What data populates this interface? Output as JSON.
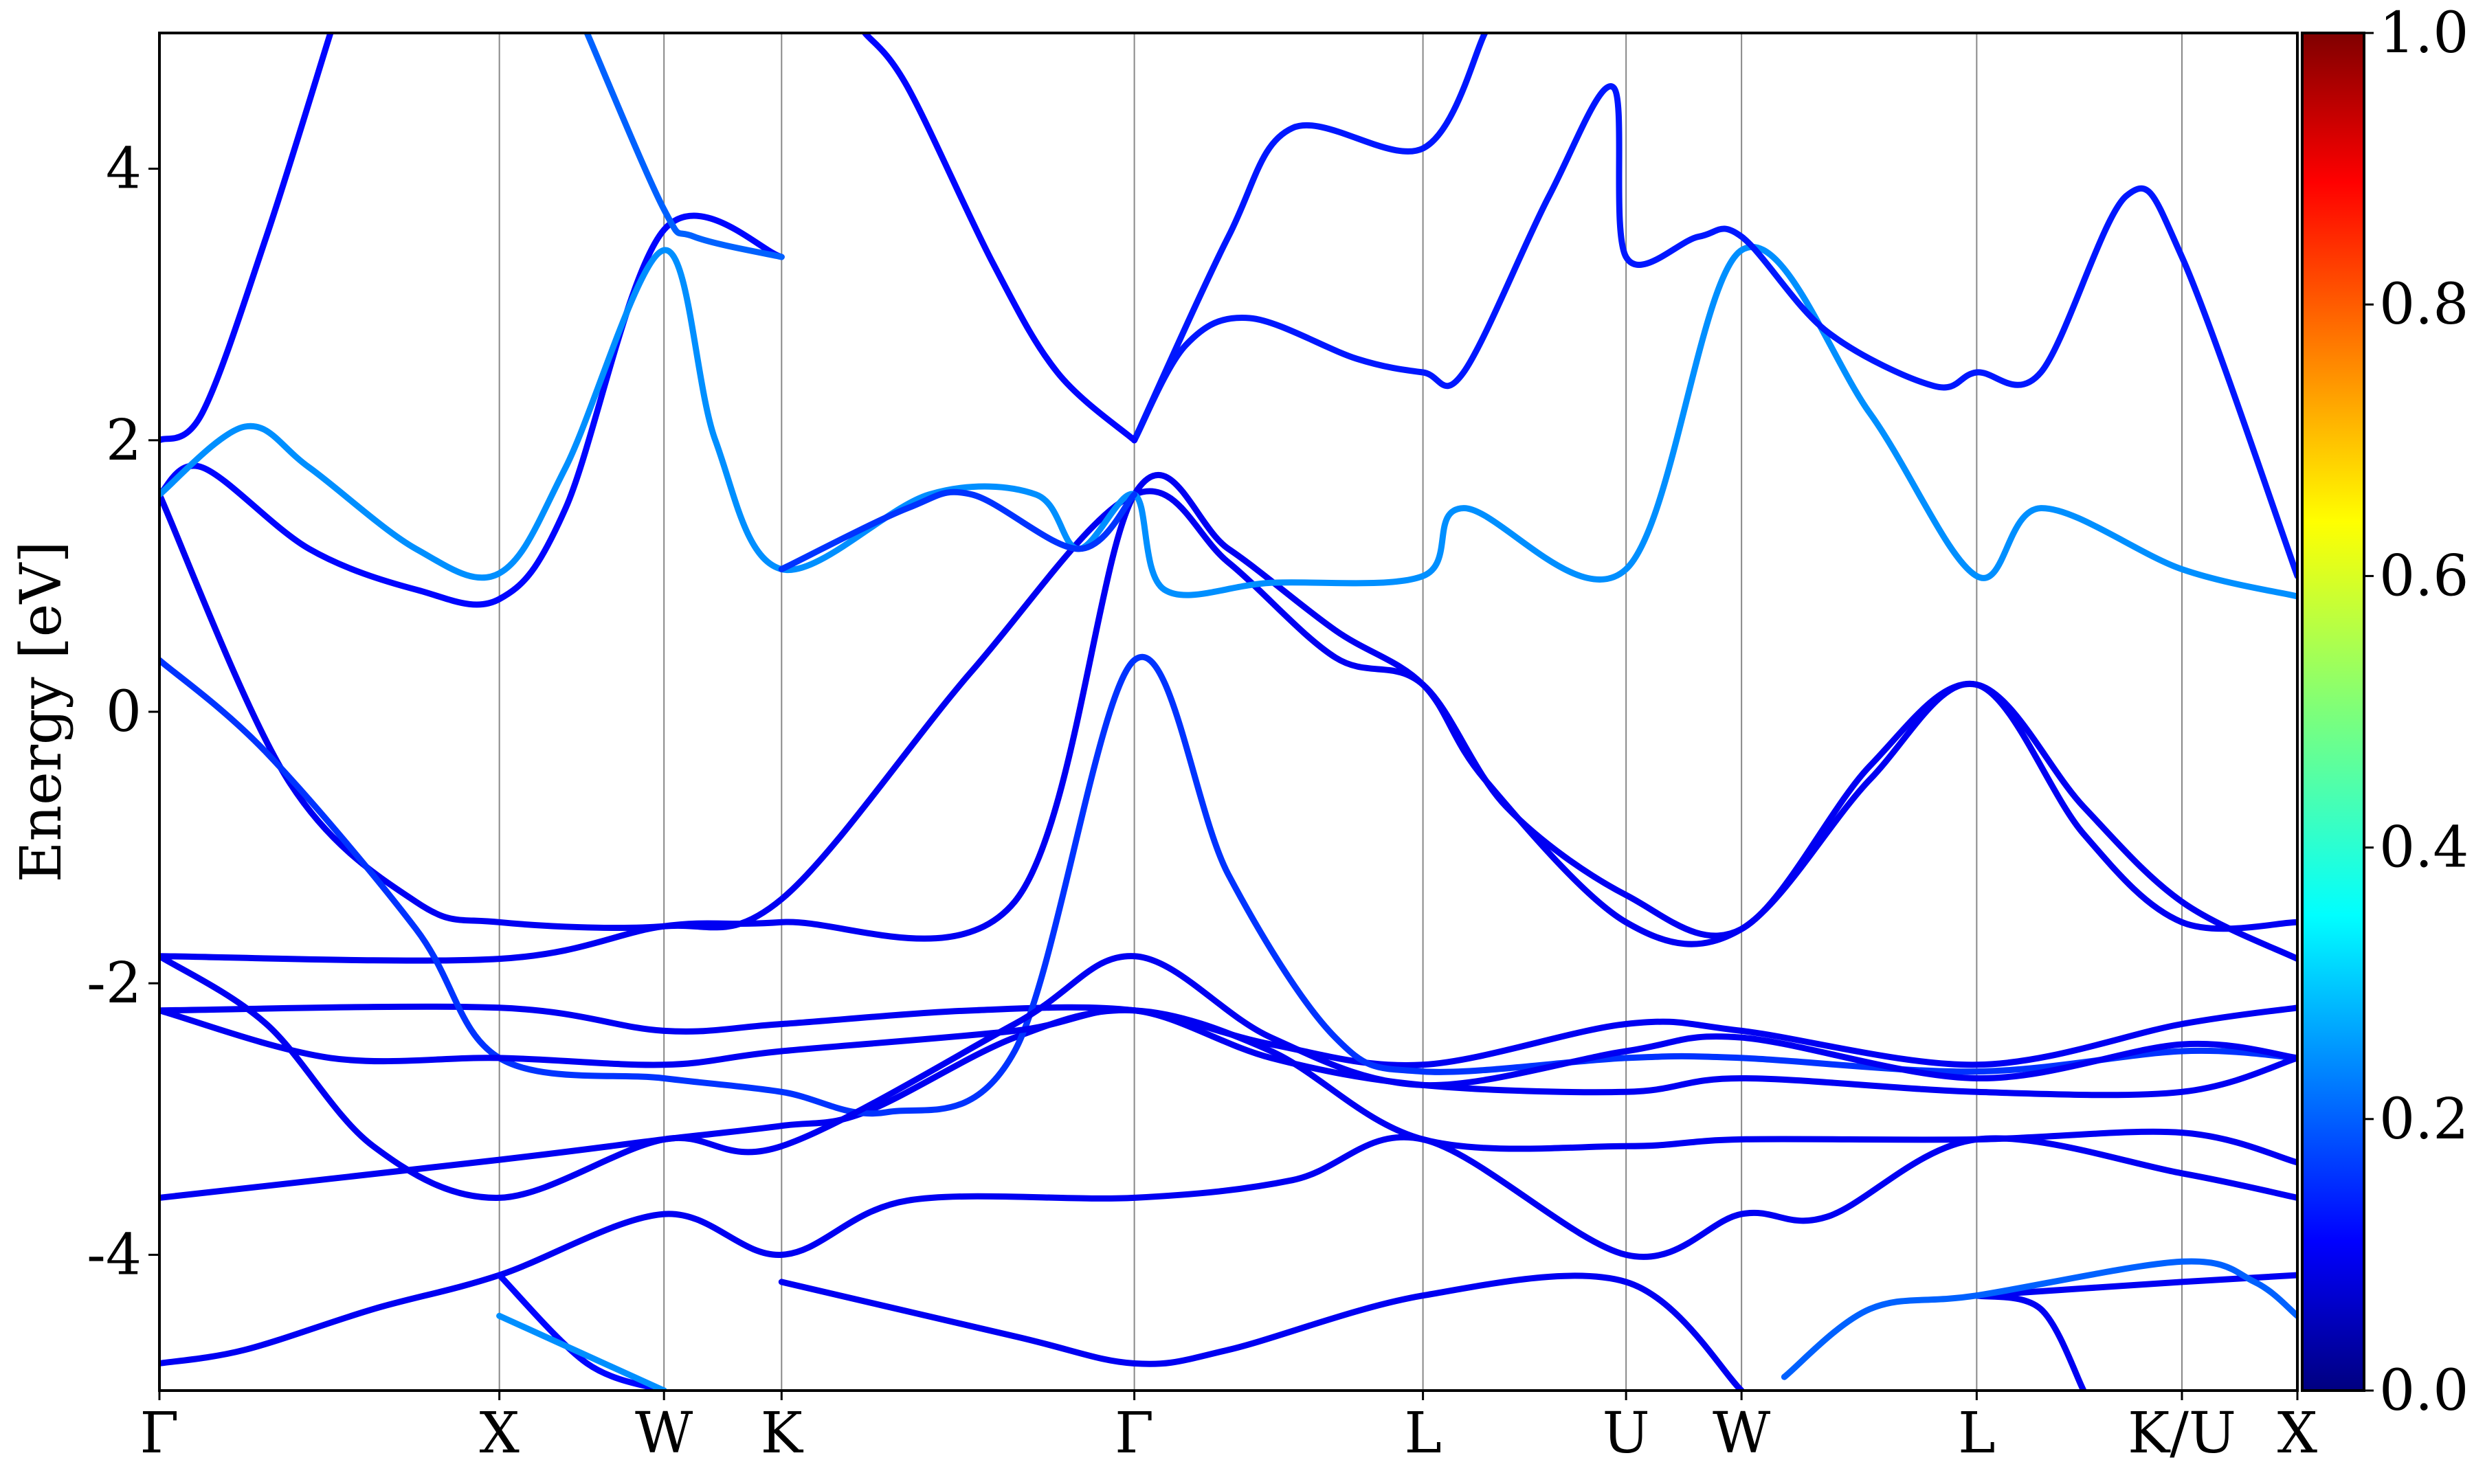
{
  "chart_data": {
    "type": "line",
    "title": "",
    "xlabel": "",
    "ylabel": "Energy [eV]",
    "ylim": [
      -5,
      5
    ],
    "yticks": [
      "4",
      "2",
      "0",
      "-2",
      "-4"
    ],
    "ytick_values": [
      4,
      2,
      0,
      -2,
      -4
    ],
    "x_range": [
      0,
      1
    ],
    "kpath": [
      {
        "label": "Γ",
        "x": 0.0
      },
      {
        "label": "X",
        "x": 0.159
      },
      {
        "label": "W",
        "x": 0.236
      },
      {
        "label": "K",
        "x": 0.291
      },
      {
        "label": "Γ",
        "x": 0.456
      },
      {
        "label": "L",
        "x": 0.591
      },
      {
        "label": "U",
        "x": 0.686
      },
      {
        "label": "W",
        "x": 0.74
      },
      {
        "label": "L",
        "x": 0.85
      },
      {
        "label": "K/U",
        "x": 0.946
      },
      {
        "label": "X",
        "x": 1.0
      }
    ],
    "colorbar": {
      "min": 0.0,
      "max": 1.0,
      "ticks": [
        "0.0",
        "0.2",
        "0.4",
        "0.6",
        "0.8",
        "1.0"
      ],
      "tick_values": [
        0.0,
        0.2,
        0.4,
        0.6,
        0.8,
        1.0
      ],
      "colormap": "jet"
    },
    "grid": "vertical lines at high-symmetry points",
    "series": [
      {
        "weight": 0.08,
        "points": [
          [
            0,
            -4.8
          ],
          [
            0.04,
            -4.7
          ],
          [
            0.1,
            -4.4
          ],
          [
            0.159,
            -4.15
          ],
          [
            0.236,
            -3.7
          ],
          [
            0.291,
            -4.0
          ],
          [
            0.35,
            -3.6
          ],
          [
            0.456,
            -3.58
          ],
          [
            0.53,
            -3.45
          ],
          [
            0.591,
            -3.15
          ],
          [
            0.686,
            -4.0
          ],
          [
            0.74,
            -3.7
          ],
          [
            0.78,
            -3.72
          ],
          [
            0.85,
            -3.15
          ],
          [
            0.946,
            -3.4
          ],
          [
            1.0,
            -3.58
          ]
        ]
      },
      {
        "weight": 0.08,
        "points": [
          [
            0,
            -3.58
          ],
          [
            0.159,
            -3.3
          ],
          [
            0.236,
            -3.15
          ],
          [
            0.291,
            -3.05
          ],
          [
            0.33,
            -2.95
          ],
          [
            0.4,
            -2.4
          ],
          [
            0.456,
            -2.2
          ],
          [
            0.52,
            -2.5
          ],
          [
            0.591,
            -3.15
          ],
          [
            0.686,
            -3.2
          ],
          [
            0.74,
            -3.15
          ],
          [
            0.85,
            -3.15
          ],
          [
            0.946,
            -3.1
          ],
          [
            1.0,
            -3.32
          ]
        ]
      },
      {
        "weight": 0.08,
        "points": [
          [
            0,
            -2.2
          ],
          [
            0.159,
            -2.18
          ],
          [
            0.236,
            -2.35
          ],
          [
            0.291,
            -2.3
          ],
          [
            0.38,
            -2.2
          ],
          [
            0.456,
            -2.2
          ],
          [
            0.52,
            -2.45
          ],
          [
            0.591,
            -2.6
          ],
          [
            0.686,
            -2.3
          ],
          [
            0.74,
            -2.35
          ],
          [
            0.85,
            -2.6
          ],
          [
            0.946,
            -2.3
          ],
          [
            1.0,
            -2.18
          ]
        ]
      },
      {
        "weight": 0.08,
        "points": [
          [
            0,
            -1.8
          ],
          [
            0.159,
            -1.82
          ],
          [
            0.236,
            -1.58
          ],
          [
            0.291,
            -1.55
          ],
          [
            0.4,
            -1.4
          ],
          [
            0.456,
            1.6
          ],
          [
            0.5,
            1.2
          ],
          [
            0.55,
            0.6
          ],
          [
            0.591,
            0.2
          ],
          [
            0.62,
            -0.5
          ],
          [
            0.686,
            -1.55
          ],
          [
            0.74,
            -1.6
          ],
          [
            0.8,
            -0.5
          ],
          [
            0.85,
            0.2
          ],
          [
            0.9,
            -0.9
          ],
          [
            0.946,
            -1.55
          ],
          [
            1.0,
            -1.55
          ]
        ]
      },
      {
        "weight": 0.08,
        "points": [
          [
            0,
            1.6
          ],
          [
            0.06,
            -0.5
          ],
          [
            0.12,
            -1.4
          ],
          [
            0.159,
            -1.55
          ],
          [
            0.236,
            -1.58
          ],
          [
            0.291,
            -1.38
          ],
          [
            0.38,
            0.3
          ],
          [
            0.456,
            1.6
          ],
          [
            0.5,
            1.1
          ],
          [
            0.55,
            0.4
          ],
          [
            0.591,
            0.2
          ],
          [
            0.63,
            -0.7
          ],
          [
            0.686,
            -1.35
          ],
          [
            0.74,
            -1.6
          ],
          [
            0.8,
            -0.4
          ],
          [
            0.85,
            0.2
          ],
          [
            0.9,
            -0.7
          ],
          [
            0.946,
            -1.4
          ],
          [
            1.0,
            -1.82
          ]
        ]
      },
      {
        "weight": 0.15,
        "points": [
          [
            0,
            0.38
          ],
          [
            0.05,
            -0.3
          ],
          [
            0.12,
            -1.6
          ],
          [
            0.159,
            -2.55
          ],
          [
            0.236,
            -2.7
          ],
          [
            0.291,
            -2.8
          ],
          [
            0.34,
            -2.95
          ],
          [
            0.4,
            -2.5
          ],
          [
            0.456,
            0.38
          ],
          [
            0.5,
            -1.2
          ],
          [
            0.55,
            -2.4
          ],
          [
            0.591,
            -2.65
          ],
          [
            0.686,
            -2.55
          ],
          [
            0.74,
            -2.55
          ],
          [
            0.85,
            -2.65
          ],
          [
            0.946,
            -2.5
          ],
          [
            1.0,
            -2.55
          ]
        ]
      },
      {
        "weight": 0.08,
        "points": [
          [
            0,
            -2.2
          ],
          [
            0.08,
            -2.55
          ],
          [
            0.159,
            -2.55
          ],
          [
            0.236,
            -2.6
          ],
          [
            0.291,
            -2.5
          ],
          [
            0.4,
            -2.35
          ],
          [
            0.456,
            -2.2
          ],
          [
            0.52,
            -2.55
          ],
          [
            0.591,
            -2.75
          ],
          [
            0.686,
            -2.8
          ],
          [
            0.74,
            -2.7
          ],
          [
            0.85,
            -2.8
          ],
          [
            0.946,
            -2.8
          ],
          [
            1.0,
            -2.55
          ]
        ]
      },
      {
        "weight": 0.08,
        "points": [
          [
            0,
            -1.8
          ],
          [
            0.05,
            -2.3
          ],
          [
            0.1,
            -3.2
          ],
          [
            0.159,
            -3.58
          ],
          [
            0.236,
            -3.15
          ],
          [
            0.291,
            -3.2
          ],
          [
            0.4,
            -2.3
          ],
          [
            0.456,
            -1.8
          ],
          [
            0.52,
            -2.4
          ],
          [
            0.591,
            -2.75
          ],
          [
            0.686,
            -2.5
          ],
          [
            0.74,
            -2.4
          ],
          [
            0.85,
            -2.7
          ],
          [
            0.946,
            -2.45
          ],
          [
            1.0,
            -2.55
          ]
        ]
      },
      {
        "weight": 0.1,
        "points": [
          [
            0,
            2.0
          ],
          [
            0.02,
            2.2
          ],
          [
            0.05,
            3.5
          ],
          [
            0.08,
            5.0
          ]
        ]
      },
      {
        "weight": 0.1,
        "points": [
          [
            0,
            1.6
          ],
          [
            0.02,
            1.8
          ],
          [
            0.07,
            1.2
          ],
          [
            0.12,
            0.9
          ],
          [
            0.159,
            0.83
          ],
          [
            0.19,
            1.5
          ],
          [
            0.236,
            3.55
          ],
          [
            0.291,
            3.35
          ]
        ]
      },
      {
        "weight": 0.25,
        "points": [
          [
            0,
            1.6
          ],
          [
            0.04,
            2.1
          ],
          [
            0.07,
            1.8
          ],
          [
            0.12,
            1.2
          ],
          [
            0.159,
            1.02
          ],
          [
            0.19,
            1.8
          ],
          [
            0.236,
            3.4
          ],
          [
            0.26,
            2.0
          ],
          [
            0.291,
            1.05
          ],
          [
            0.36,
            1.6
          ],
          [
            0.41,
            1.6
          ],
          [
            0.43,
            1.2
          ],
          [
            0.456,
            1.6
          ],
          [
            0.47,
            0.9
          ],
          [
            0.52,
            0.95
          ],
          [
            0.591,
            1.0
          ],
          [
            0.61,
            1.5
          ],
          [
            0.686,
            1.05
          ],
          [
            0.74,
            3.4
          ],
          [
            0.8,
            2.2
          ],
          [
            0.85,
            1.0
          ],
          [
            0.88,
            1.5
          ],
          [
            0.946,
            1.05
          ],
          [
            1.0,
            0.85
          ]
        ]
      },
      {
        "weight": 0.15,
        "points": [
          [
            0.291,
            1.05
          ],
          [
            0.35,
            1.5
          ],
          [
            0.38,
            1.6
          ],
          [
            0.43,
            1.2
          ],
          [
            0.456,
            1.6
          ]
        ]
      },
      {
        "weight": 0.12,
        "points": [
          [
            0.456,
            2.0
          ],
          [
            0.5,
            3.5
          ],
          [
            0.53,
            4.3
          ],
          [
            0.591,
            4.15
          ],
          [
            0.62,
            5.0
          ]
        ]
      },
      {
        "weight": 0.12,
        "points": [
          [
            0.456,
            2.0
          ],
          [
            0.48,
            2.7
          ],
          [
            0.51,
            2.9
          ],
          [
            0.56,
            2.6
          ],
          [
            0.591,
            2.5
          ],
          [
            0.61,
            2.5
          ],
          [
            0.65,
            3.8
          ],
          [
            0.68,
            4.6
          ],
          [
            0.686,
            3.35
          ],
          [
            0.72,
            3.5
          ],
          [
            0.74,
            3.5
          ],
          [
            0.78,
            2.8
          ],
          [
            0.83,
            2.4
          ],
          [
            0.85,
            2.5
          ],
          [
            0.88,
            2.5
          ],
          [
            0.92,
            3.8
          ],
          [
            0.946,
            3.35
          ],
          [
            1.0,
            1.0
          ]
        ]
      },
      {
        "weight": 0.1,
        "points": [
          [
            0.456,
            2.0
          ],
          [
            0.42,
            2.5
          ],
          [
            0.39,
            3.3
          ],
          [
            0.35,
            4.6
          ],
          [
            0.33,
            5.0
          ]
        ]
      },
      {
        "weight": 0.2,
        "points": [
          [
            0.291,
            3.35
          ],
          [
            0.25,
            3.5
          ],
          [
            0.236,
            3.7
          ],
          [
            0.2,
            5.0
          ]
        ]
      },
      {
        "weight": 0.1,
        "points": [
          [
            0.159,
            -4.15
          ],
          [
            0.2,
            -4.8
          ],
          [
            0.236,
            -5.0
          ]
        ]
      },
      {
        "weight": 0.25,
        "points": [
          [
            0.159,
            -4.45
          ],
          [
            0.236,
            -5.0
          ]
        ]
      },
      {
        "weight": 0.08,
        "points": [
          [
            0.291,
            -4.2
          ],
          [
            0.4,
            -4.6
          ],
          [
            0.456,
            -4.8
          ],
          [
            0.5,
            -4.7
          ],
          [
            0.591,
            -4.3
          ],
          [
            0.686,
            -4.2
          ],
          [
            0.74,
            -5.0
          ]
        ]
      },
      {
        "weight": 0.08,
        "points": [
          [
            0.85,
            -4.3
          ],
          [
            0.946,
            -4.2
          ],
          [
            1.0,
            -4.15
          ]
        ]
      },
      {
        "weight": 0.08,
        "points": [
          [
            0.85,
            -4.3
          ],
          [
            0.88,
            -4.4
          ],
          [
            0.9,
            -5.0
          ]
        ]
      },
      {
        "weight": 0.2,
        "points": [
          [
            0.76,
            -4.9
          ],
          [
            0.8,
            -4.4
          ],
          [
            0.85,
            -4.3
          ],
          [
            0.946,
            -4.05
          ],
          [
            0.98,
            -4.2
          ],
          [
            1.0,
            -4.45
          ]
        ]
      }
    ]
  }
}
